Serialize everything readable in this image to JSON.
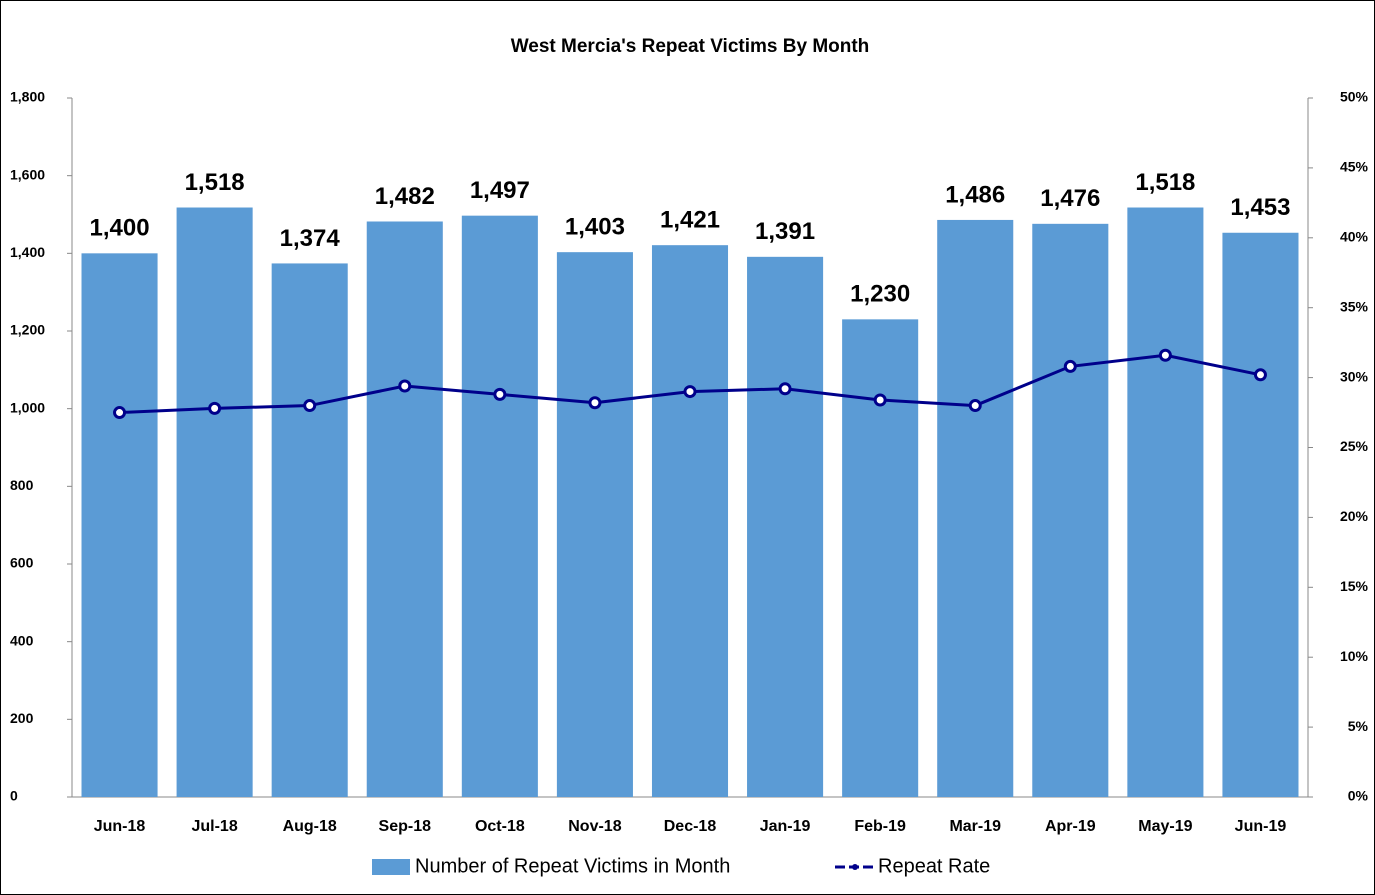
{
  "chart_data": {
    "type": "combo",
    "title": "West Mercia's Repeat Victims By Month",
    "categories": [
      "Jun-18",
      "Jul-18",
      "Aug-18",
      "Sep-18",
      "Oct-18",
      "Nov-18",
      "Dec-18",
      "Jan-19",
      "Feb-19",
      "Mar-19",
      "Apr-19",
      "May-19",
      "Jun-19"
    ],
    "series": [
      {
        "name": "Number of Repeat Victims in Month",
        "type": "bar",
        "color": "#5b9bd5",
        "values": [
          1400,
          1518,
          1374,
          1482,
          1497,
          1403,
          1421,
          1391,
          1230,
          1486,
          1476,
          1518,
          1453
        ],
        "value_labels": [
          "1,400",
          "1,518",
          "1,374",
          "1,482",
          "1,497",
          "1,403",
          "1,421",
          "1,391",
          "1,230",
          "1,486",
          "1,476",
          "1,518",
          "1,453"
        ]
      },
      {
        "name": "Repeat Rate",
        "type": "line",
        "axis": "y2",
        "color": "#00008b",
        "values": [
          27.5,
          27.8,
          28.0,
          29.4,
          28.8,
          28.2,
          29.0,
          29.2,
          28.4,
          28.0,
          30.8,
          31.6,
          30.2
        ]
      }
    ],
    "ylim": [
      0,
      1800
    ],
    "yticks": [
      0,
      200,
      400,
      600,
      800,
      {
        "value": 1000,
        "label": "1,000"
      },
      {
        "value": 1200,
        "label": "1,200"
      },
      {
        "value": 1400,
        "label": "1,400"
      },
      {
        "value": 1600,
        "label": "1,600"
      },
      {
        "value": 1800,
        "label": "1,800"
      }
    ],
    "y2lim": [
      0,
      50
    ],
    "y2ticks": [
      {
        "value": 0,
        "label": "0%"
      },
      {
        "value": 5,
        "label": "5%"
      },
      {
        "value": 10,
        "label": "10%"
      },
      {
        "value": 15,
        "label": "15%"
      },
      {
        "value": 20,
        "label": "20%"
      },
      {
        "value": 25,
        "label": "25%"
      },
      {
        "value": 30,
        "label": "30%"
      },
      {
        "value": 35,
        "label": "35%"
      },
      {
        "value": 40,
        "label": "40%"
      },
      {
        "value": 45,
        "label": "45%"
      },
      {
        "value": 50,
        "label": "50%"
      }
    ],
    "legend": "bottom"
  }
}
